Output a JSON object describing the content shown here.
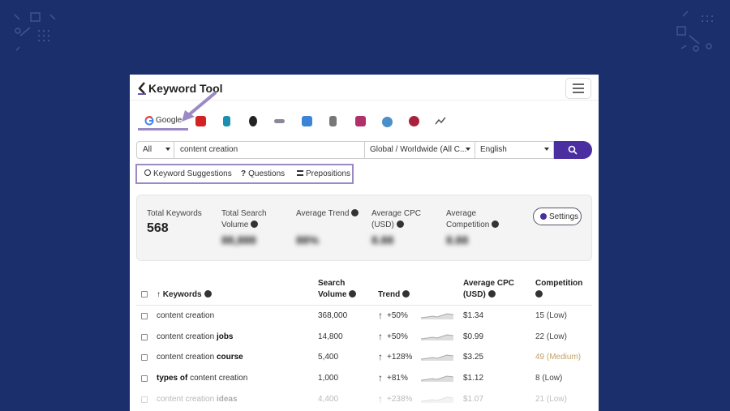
{
  "header": {
    "logo": "Keyword Tool"
  },
  "engine_tabs": {
    "active": "Google"
  },
  "search": {
    "scope": "All",
    "query": "content creation",
    "location": "Global / Worldwide (All C...",
    "language": "English"
  },
  "modes": [
    "Keyword Suggestions",
    "Questions",
    "Prepositions"
  ],
  "stats": {
    "items": [
      {
        "label": "Total Keywords",
        "value": "568",
        "blurred": false
      },
      {
        "label": "Total Search Volume",
        "value": "88,888",
        "blurred": true
      },
      {
        "label": "Average Trend",
        "value": "88%",
        "blurred": true
      },
      {
        "label": "Average CPC (USD)",
        "value": "8.88",
        "blurred": true
      },
      {
        "label": "Average Competition",
        "value": "8.88",
        "blurred": true
      }
    ],
    "settings": "Settings"
  },
  "table": {
    "headers": [
      "Keywords",
      "Search Volume",
      "Trend",
      "Average CPC (USD)",
      "Competition"
    ],
    "rows": [
      {
        "keyword": [
          {
            "text": "content creation",
            "bold": false
          }
        ],
        "volume": "368,000",
        "trend": "+50%",
        "cpc": "$1.34",
        "competition": "15 (Low)",
        "competition_color": "#444444"
      },
      {
        "keyword": [
          {
            "text": "content creation ",
            "bold": false
          },
          {
            "text": "jobs",
            "bold": true
          }
        ],
        "volume": "14,800",
        "trend": "+50%",
        "cpc": "$0.99",
        "competition": "22 (Low)",
        "competition_color": "#444444"
      },
      {
        "keyword": [
          {
            "text": "content creation ",
            "bold": false
          },
          {
            "text": "course",
            "bold": true
          }
        ],
        "volume": "5,400",
        "trend": "+128%",
        "cpc": "$3.25",
        "competition": "49 (Medium)",
        "competition_color": "#c2a06a"
      },
      {
        "keyword": [
          {
            "text": "types of",
            "bold": true
          },
          {
            "text": " content creation",
            "bold": false
          }
        ],
        "volume": "1,000",
        "trend": "+81%",
        "cpc": "$1.12",
        "competition": "8 (Low)",
        "competition_color": "#444444"
      },
      {
        "keyword": [
          {
            "text": "content creation ",
            "bold": false
          },
          {
            "text": "ideas",
            "bold": true
          }
        ],
        "volume": "4,400",
        "trend": "+238%",
        "cpc": "$1.07",
        "competition": "21 (Low)",
        "competition_color": "#444444"
      }
    ]
  }
}
